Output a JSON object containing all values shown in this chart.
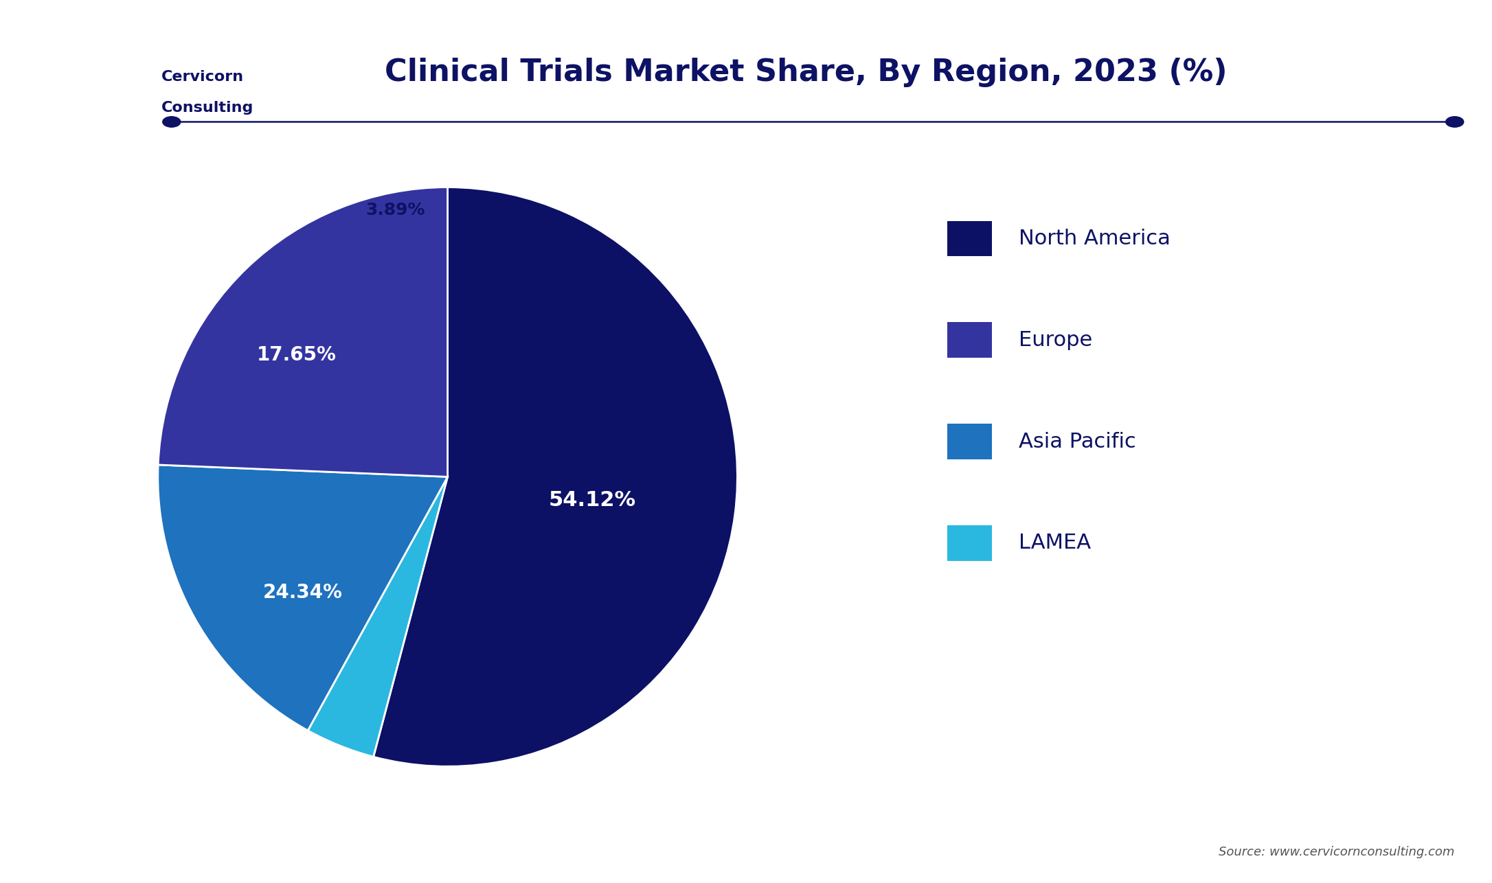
{
  "title": "Clinical Trials Market Share, By Region, 2023 (%)",
  "regions": [
    "North America",
    "Europe",
    "Asia Pacific",
    "LAMEA"
  ],
  "slices": [
    54.12,
    24.34,
    17.65,
    3.89
  ],
  "labels": [
    "54.12%",
    "24.34%",
    "17.65%",
    "3.89%"
  ],
  "colors_by_region": {
    "North America": "#0c1166",
    "Europe": "#3434a0",
    "Asia Pacific": "#1e72be",
    "LAMEA": "#2ab8e0"
  },
  "background_color": "#ffffff",
  "text_color": "#ffffff",
  "title_color": "#0d1264",
  "label_text_color": "#ffffff",
  "legend_text_color": "#0d1264",
  "source_text": "Source: www.cervicornconsulting.com",
  "source_color": "#555555",
  "label_fontsize": 20,
  "legend_fontsize": 22,
  "title_fontsize": 32,
  "line_color": "#0d1264",
  "logo_bg_color": "#1a3a6e",
  "logo_text": "Cervicorn\nConsulting",
  "logo_text_color": "#0d1264"
}
